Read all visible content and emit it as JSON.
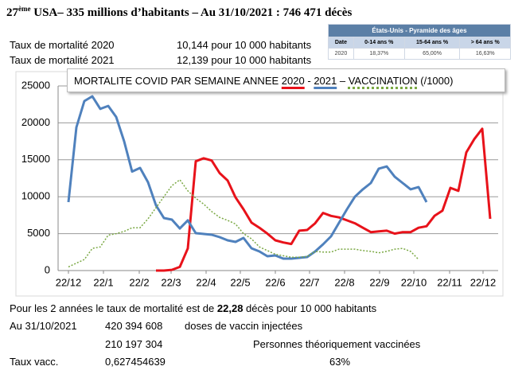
{
  "header": {
    "rank": "27",
    "rank_suffix": "ème",
    "title": "USA– 335 millions d’habitants – Au 31/10/2021 : 746 471 décès"
  },
  "stats": [
    [
      "Taux de mortalité 2020",
      "10,144 pour 10 000 habitants"
    ],
    [
      "Taux de mortalité 2021",
      "12,139 pour 10 000 habitants"
    ]
  ],
  "table": {
    "title": "États-Unis - Pyramide des âges",
    "headers": [
      "Date",
      "0-14 ans %",
      "15-64 ans %",
      "> 64 ans %"
    ],
    "rows": [
      [
        "2020",
        "18,37%",
        "65,00%",
        "16,63%"
      ]
    ]
  },
  "chart_data": {
    "type": "line",
    "title": "MORTALITE COVID PAR SEMAINE ANNEE",
    "legend_separators": [
      "-",
      "–"
    ],
    "title_suffix": "(/1000)",
    "x": [
      0,
      1,
      2,
      3,
      4,
      5,
      6,
      7,
      8,
      9,
      10,
      11,
      12,
      13,
      14,
      15,
      16,
      17,
      18,
      19,
      20,
      21,
      22,
      23,
      24,
      25,
      26,
      27,
      28,
      29,
      30,
      31,
      32,
      33,
      34,
      35,
      36,
      37,
      38,
      39,
      40,
      41,
      42,
      43,
      44,
      45,
      46,
      47,
      48,
      49,
      50,
      51,
      52,
      53
    ],
    "xlim": [
      -1.3,
      54
    ],
    "xticks": [
      {
        "value": 0,
        "label": "22/12"
      },
      {
        "value": 4.4,
        "label": "22/1"
      },
      {
        "value": 8.9,
        "label": "22/2"
      },
      {
        "value": 12.9,
        "label": "22/3"
      },
      {
        "value": 17.3,
        "label": "22/4"
      },
      {
        "value": 21.6,
        "label": "22/5"
      },
      {
        "value": 26,
        "label": "22/6"
      },
      {
        "value": 30.3,
        "label": "22/7"
      },
      {
        "value": 34.7,
        "label": "22/8"
      },
      {
        "value": 39.1,
        "label": "22/9"
      },
      {
        "value": 43.4,
        "label": "22/10"
      },
      {
        "value": 47.9,
        "label": "22/11"
      },
      {
        "value": 52.1,
        "label": "22/12"
      }
    ],
    "ylim": [
      0,
      25000
    ],
    "yticks": [
      0,
      5000,
      10000,
      15000,
      20000,
      25000
    ],
    "grid": true,
    "series": [
      {
        "name": "2020",
        "color": "#e8121a",
        "dash": false,
        "values": [
          null,
          null,
          null,
          null,
          null,
          null,
          null,
          null,
          null,
          null,
          null,
          0,
          0,
          100,
          500,
          3000,
          14800,
          15200,
          14900,
          13200,
          12200,
          9900,
          8300,
          6500,
          5800,
          5000,
          4100,
          3800,
          3600,
          5400,
          5500,
          6400,
          7800,
          7400,
          7200,
          6800,
          6400,
          5800,
          5200,
          5300,
          5400,
          5000,
          5200,
          5200,
          5800,
          6000,
          7400,
          8100,
          11200,
          10800,
          16000,
          17800,
          19200,
          7000
        ]
      },
      {
        "name": "2021",
        "color": "#4f81bd",
        "dash": false,
        "values": [
          9270,
          19400,
          22950,
          23600,
          21900,
          22300,
          20800,
          17500,
          13400,
          13900,
          11960,
          8840,
          7110,
          6900,
          5700,
          6800,
          5060,
          4960,
          4850,
          4530,
          4100,
          3880,
          4420,
          3020,
          2590,
          1940,
          2050,
          1620,
          1620,
          1720,
          1830,
          2590,
          3560,
          4630,
          6470,
          8300,
          10000,
          11000,
          11850,
          13800,
          14100,
          12700,
          11850,
          11000,
          11300,
          9270,
          null,
          null,
          null,
          null,
          null,
          null,
          null,
          null
        ]
      },
      {
        "name": "VACCINATION",
        "color": "#7aa843",
        "dash": true,
        "values": [
          500,
          1000,
          1500,
          3000,
          3200,
          4800,
          5000,
          5300,
          5800,
          5800,
          7000,
          8500,
          10000,
          11500,
          12300,
          10800,
          9800,
          9000,
          8000,
          7200,
          6800,
          6300,
          5000,
          4300,
          3200,
          2700,
          2200,
          2000,
          1800,
          1800,
          1900,
          2600,
          2500,
          2500,
          2900,
          2900,
          2900,
          2700,
          2600,
          2400,
          2600,
          2900,
          3000,
          2600,
          1500,
          null,
          null,
          null,
          null,
          null,
          null,
          null,
          null,
          null
        ]
      }
    ]
  },
  "footer": {
    "line1": [
      "Pour les 2 années le taux de mortalité est de ",
      "22,28",
      " décès pour 10 000 habitants"
    ],
    "line2": [
      "Au 31/10/2021",
      "420 394 608",
      "doses de vaccin injectées"
    ],
    "line3": [
      "210 197 304",
      "Personnes théoriquement vaccinées"
    ],
    "line4": [
      "Taux vacc.",
      "0,627454639",
      "63%"
    ]
  }
}
